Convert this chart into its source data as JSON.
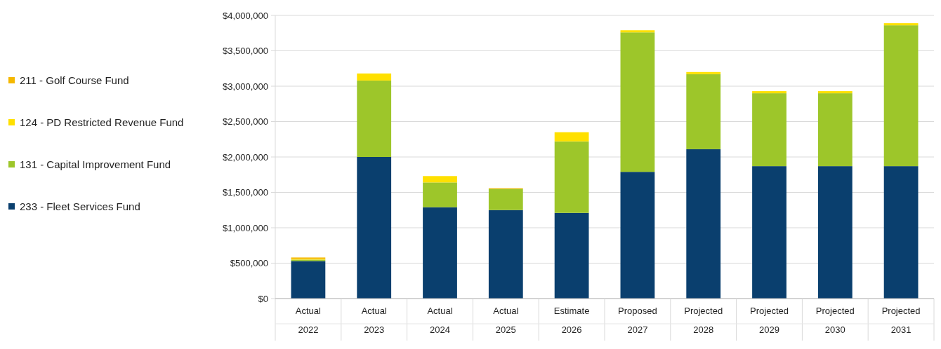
{
  "chart_data": {
    "type": "bar",
    "stacked": true,
    "categories": [
      "Actual\n2022",
      "Actual\n2023",
      "Actual\n2024",
      "Actual\n2025",
      "Estimate\n2026",
      "Proposed\n2027",
      "Projected\n2028",
      "Projected\n2029",
      "Projected\n2030",
      "Projected\n2031"
    ],
    "series": [
      {
        "name": "233 - Fleet Services Fund",
        "color": "#0a3f6e",
        "values": [
          530000,
          2000000,
          1290000,
          1250000,
          1210000,
          1790000,
          2110000,
          1870000,
          1870000,
          1870000
        ]
      },
      {
        "name": "131 - Capital Improvement Fund",
        "color": "#9dc62a",
        "values": [
          20000,
          1080000,
          350000,
          300000,
          1010000,
          1970000,
          1060000,
          1030000,
          1030000,
          1990000
        ]
      },
      {
        "name": "124 - PD Restricted Revenue Fund",
        "color": "#ffe000",
        "values": [
          10000,
          100000,
          90000,
          0,
          130000,
          30000,
          30000,
          30000,
          30000,
          30000
        ]
      },
      {
        "name": "211 - Golf Course Fund",
        "color": "#f5b800",
        "values": [
          20000,
          0,
          0,
          10000,
          0,
          0,
          0,
          0,
          0,
          0
        ]
      }
    ],
    "ylim": [
      0,
      4000000
    ],
    "yticks": [
      {
        "value": 0,
        "label": "$0"
      },
      {
        "value": 500000,
        "label": "$500,000"
      },
      {
        "value": 1000000,
        "label": "$1,000,000"
      },
      {
        "value": 1500000,
        "label": "$1,500,000"
      },
      {
        "value": 2000000,
        "label": "$2,000,000"
      },
      {
        "value": 2500000,
        "label": "$2,500,000"
      },
      {
        "value": 3000000,
        "label": "$3,000,000"
      },
      {
        "value": 3500000,
        "label": "$3,500,000"
      },
      {
        "value": 4000000,
        "label": "$4,000,000"
      }
    ],
    "grid": "y",
    "legend": "left"
  }
}
